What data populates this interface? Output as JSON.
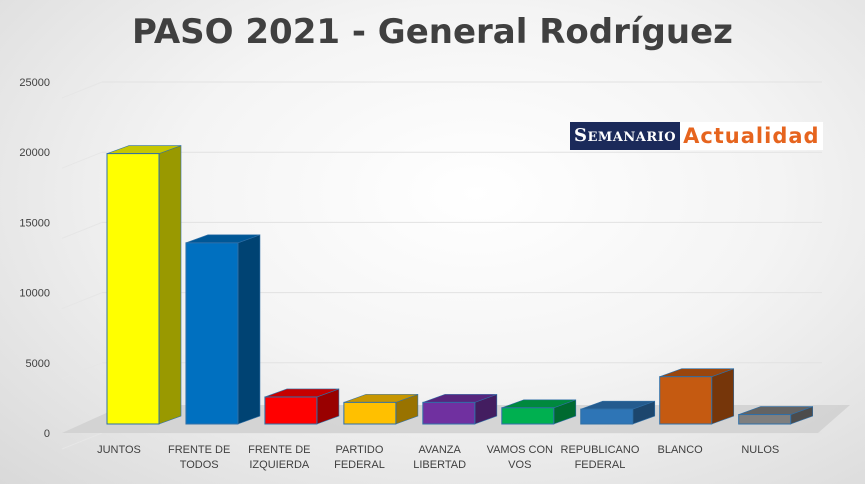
{
  "chart_data": {
    "type": "bar",
    "title": "PASO 2021 - General Rodríguez",
    "categories": [
      [
        "JUNTOS"
      ],
      [
        "FRENTE DE",
        "TODOS"
      ],
      [
        "FRENTE DE",
        "IZQUIERDA"
      ],
      [
        "PARTIDO",
        "FEDERAL"
      ],
      [
        "AVANZA",
        "LIBERTAD"
      ],
      [
        "VAMOS CON",
        "VOS"
      ],
      [
        "REPUBLICANO",
        "FEDERAL"
      ],
      [
        "BLANCO"
      ],
      [
        "NULOS"
      ]
    ],
    "values": [
      20000,
      13400,
      2000,
      1600,
      1600,
      1200,
      1100,
      3500,
      700
    ],
    "colors": [
      "#ffff00",
      "#0070c0",
      "#ff0000",
      "#ffc000",
      "#7030a0",
      "#00b050",
      "#2e75b6",
      "#c55a11",
      "#7f7f7f"
    ],
    "ylim": [
      0,
      25000
    ],
    "yticks": [
      "0",
      "5000",
      "10000",
      "15000",
      "20000",
      "25000"
    ],
    "grid": true,
    "style": "3d-column"
  },
  "watermark": {
    "left": "Semanario",
    "right": "Actualidad"
  }
}
